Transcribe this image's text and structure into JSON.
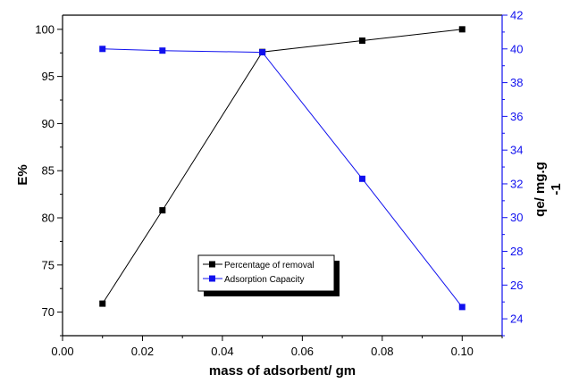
{
  "chart_data": {
    "type": "line",
    "xlabel": "mass of adsorbent/ gm",
    "ylabel_left": "E%",
    "ylabel_right_line1": "qe/ mg.g",
    "ylabel_right_line2": "-1",
    "xlim": [
      0.0,
      0.11
    ],
    "ylim_left": [
      67.5,
      101.5
    ],
    "ylim_right": [
      23,
      42
    ],
    "x_ticks": [
      "0.00",
      "0.02",
      "0.04",
      "0.06",
      "0.08",
      "0.10"
    ],
    "y_left_ticks": [
      "70",
      "75",
      "80",
      "85",
      "90",
      "95",
      "100"
    ],
    "y_right_ticks": [
      "24",
      "26",
      "28",
      "30",
      "32",
      "34",
      "36",
      "38",
      "40",
      "42"
    ],
    "grid": false,
    "legend_position": "center-bottom",
    "series": [
      {
        "name": "Percentage of removal",
        "axis": "left",
        "color": "#000000",
        "x": [
          0.01,
          0.025,
          0.05,
          0.075,
          0.1
        ],
        "y": [
          70.9,
          80.8,
          97.6,
          98.8,
          100.0
        ]
      },
      {
        "name": "Adsorption Capacity",
        "axis": "right",
        "color": "#1010ee",
        "x": [
          0.01,
          0.025,
          0.05,
          0.075,
          0.1
        ],
        "y": [
          40.0,
          39.9,
          39.8,
          32.3,
          24.7
        ]
      }
    ]
  }
}
